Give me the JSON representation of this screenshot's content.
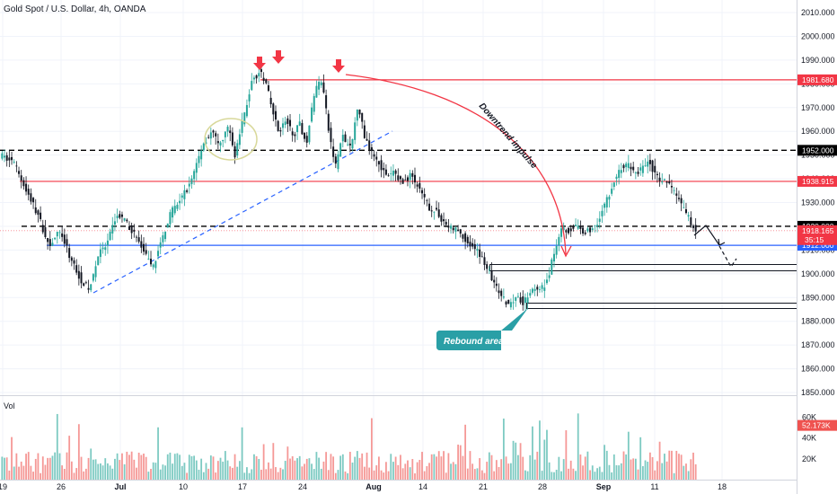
{
  "chart_data": {
    "type": "candlestick",
    "title": "Gold Spot / U.S. Dollar, 4h, OANDA",
    "price_axis": {
      "ticks": [
        "2010.000",
        "2000.000",
        "1990.000",
        "1980.000",
        "1970.000",
        "1960.000",
        "1950.000",
        "1940.000",
        "1930.000",
        "1920.000",
        "1910.000",
        "1900.000",
        "1890.000",
        "1880.000",
        "1870.000",
        "1860.000",
        "1850.000"
      ],
      "range": [
        1850,
        2010
      ]
    },
    "time_axis": {
      "ticks": [
        "19",
        "26",
        "Jul",
        "10",
        "17",
        "24",
        "Aug",
        "14",
        "21",
        "28",
        "Sep",
        "11",
        "18"
      ]
    },
    "price_path": [
      [
        0,
        1950
      ],
      [
        6,
        1947
      ],
      [
        12,
        1935
      ],
      [
        17,
        1925
      ],
      [
        22,
        1912
      ],
      [
        27,
        1918
      ],
      [
        31,
        1908
      ],
      [
        36,
        1898
      ],
      [
        40,
        1893
      ],
      [
        44,
        1908
      ],
      [
        48,
        1912
      ],
      [
        52,
        1925
      ],
      [
        56,
        1922
      ],
      [
        60,
        1917
      ],
      [
        64,
        1910
      ],
      [
        68,
        1902
      ],
      [
        72,
        1913
      ],
      [
        76,
        1925
      ],
      [
        80,
        1930
      ],
      [
        85,
        1938
      ],
      [
        91,
        1955
      ],
      [
        95,
        1960
      ],
      [
        98,
        1953
      ],
      [
        102,
        1962
      ],
      [
        105,
        1950
      ],
      [
        110,
        1970
      ],
      [
        113,
        1982
      ],
      [
        116,
        1985
      ],
      [
        119,
        1980
      ],
      [
        122,
        1968
      ],
      [
        125,
        1960
      ],
      [
        128,
        1965
      ],
      [
        131,
        1958
      ],
      [
        134,
        1963
      ],
      [
        137,
        1955
      ],
      [
        141,
        1978
      ],
      [
        144,
        1982
      ],
      [
        147,
        1960
      ],
      [
        150,
        1945
      ],
      [
        153,
        1958
      ],
      [
        157,
        1952
      ],
      [
        160,
        1972
      ],
      [
        163,
        1958
      ],
      [
        166,
        1952
      ],
      [
        170,
        1946
      ],
      [
        173,
        1940
      ],
      [
        176,
        1943
      ],
      [
        180,
        1938
      ],
      [
        184,
        1942
      ],
      [
        188,
        1934
      ],
      [
        192,
        1928
      ],
      [
        196,
        1925
      ],
      [
        200,
        1920
      ],
      [
        205,
        1918
      ],
      [
        210,
        1912
      ],
      [
        215,
        1908
      ],
      [
        219,
        1900
      ],
      [
        223,
        1892
      ],
      [
        227,
        1887
      ],
      [
        231,
        1891
      ],
      [
        234,
        1888
      ],
      [
        238,
        1894
      ],
      [
        241,
        1892
      ],
      [
        245,
        1898
      ],
      [
        248,
        1910
      ],
      [
        251,
        1920
      ],
      [
        254,
        1918
      ],
      [
        257,
        1920
      ],
      [
        260,
        1918
      ],
      [
        264,
        1918
      ],
      [
        267,
        1922
      ],
      [
        271,
        1930
      ],
      [
        274,
        1938
      ],
      [
        277,
        1944
      ],
      [
        281,
        1946
      ],
      [
        284,
        1942
      ],
      [
        287,
        1944
      ],
      [
        290,
        1948
      ],
      [
        293,
        1941
      ],
      [
        296,
        1939
      ],
      [
        299,
        1938
      ],
      [
        302,
        1934
      ],
      [
        305,
        1928
      ],
      [
        308,
        1923
      ],
      [
        311,
        1918
      ]
    ],
    "volume": {
      "label": "Vol",
      "ticks": [
        "60K",
        "40K",
        "20K"
      ],
      "range": [
        0,
        70000
      ],
      "current": "52.173K"
    },
    "horizontal_levels": [
      {
        "price": 1981.68,
        "label": "1981.680",
        "color": "#f23645",
        "style": "solid"
      },
      {
        "price": 1952.0,
        "label": "1952.000",
        "color": "#000000",
        "style": "dashed"
      },
      {
        "price": 1938.915,
        "label": "1938.915",
        "color": "#f23645",
        "style": "solid"
      },
      {
        "price": 1920.0,
        "label": "1920.000",
        "color": "#000000",
        "style": "dashed"
      },
      {
        "price": 1912.0,
        "label": "1912.000",
        "color": "#2962ff",
        "style": "solid"
      }
    ],
    "current_price": {
      "price": 1918.165,
      "label": "1918.165",
      "countdown": "35:15",
      "color": "#f23645"
    },
    "annotations": {
      "impulse": "Downtrend impulse",
      "rebound": "Rebound area"
    },
    "colors": {
      "up": "#26a69a",
      "down": "#131722",
      "vol_up": "#26a69a",
      "vol_down": "#ef5350",
      "resistance": "#f23645",
      "support": "#2962ff",
      "trendline": "#2962ff",
      "callout": "#2a9fa6",
      "ellipse": "#d8d89a"
    }
  }
}
